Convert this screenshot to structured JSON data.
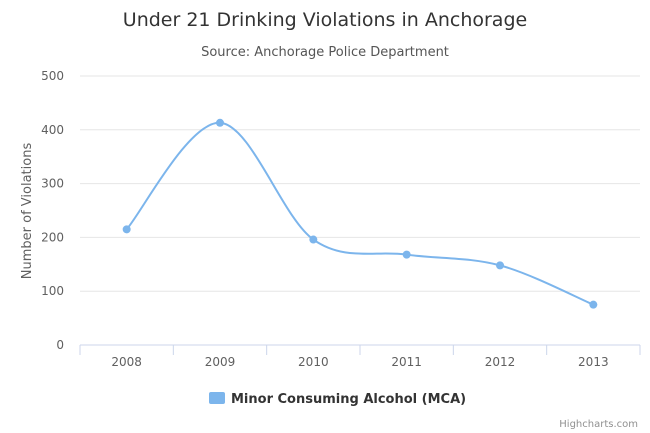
{
  "chart_data": {
    "type": "line",
    "title": "Under 21 Drinking Violations in Anchorage",
    "subtitle": "Source: Anchorage Police Department",
    "xlabel": "",
    "ylabel": "Number of Violations",
    "categories": [
      "2008",
      "2009",
      "2010",
      "2011",
      "2012",
      "2013"
    ],
    "series": [
      {
        "name": "Minor Consuming Alcohol (MCA)",
        "values": [
          215,
          413,
          196,
          168,
          148,
          75
        ],
        "color": "#7cb5ec"
      }
    ],
    "ylim": [
      0,
      500
    ],
    "yticks": [
      "0",
      "100",
      "200",
      "300",
      "400",
      "500"
    ],
    "grid": true,
    "smooth": true,
    "legend": "bottom-center",
    "credits": "Highcharts.com"
  }
}
